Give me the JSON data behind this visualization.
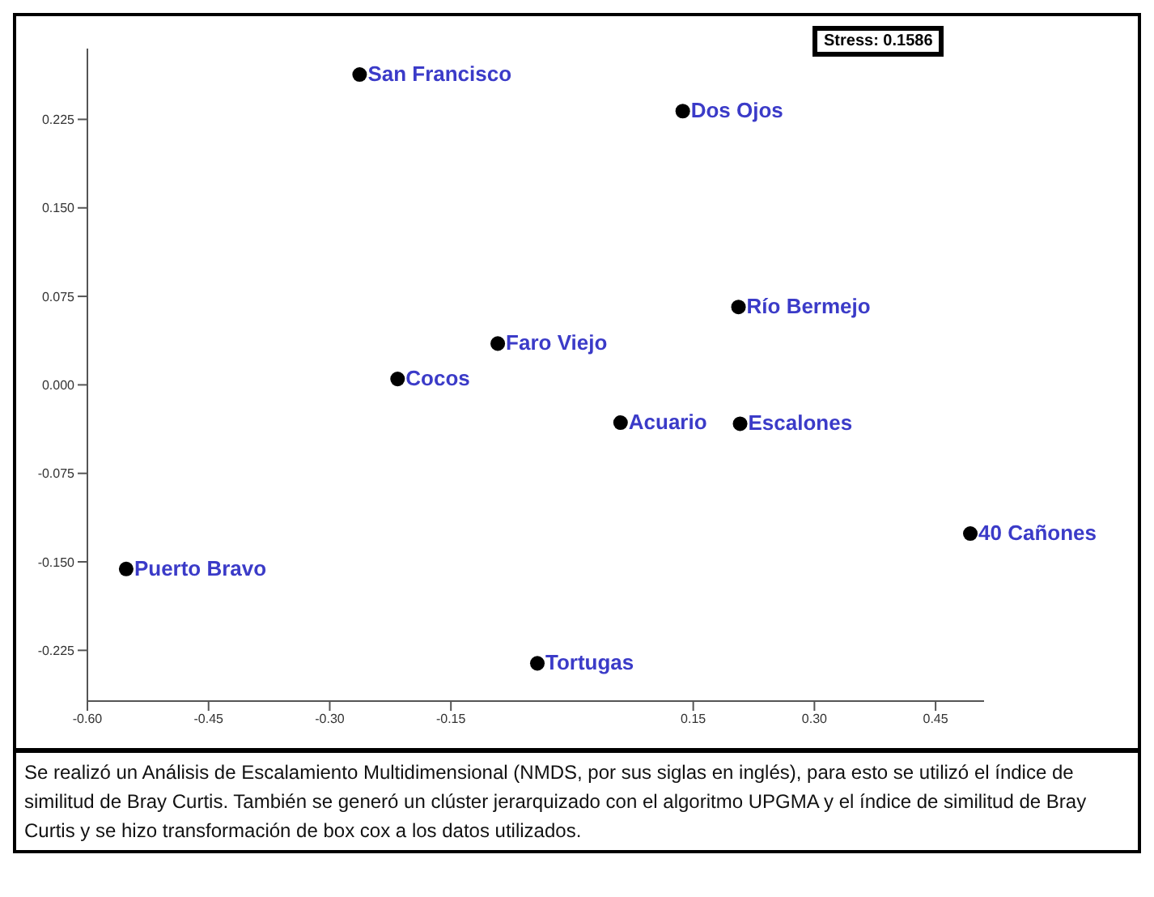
{
  "chart_data": {
    "type": "scatter",
    "x": [
      -0.263,
      0.137,
      0.206,
      -0.092,
      -0.216,
      0.06,
      0.208,
      0.493,
      -0.552,
      -0.043
    ],
    "series": [
      {
        "color": "#000000",
        "values": [
          0.263,
          0.232,
          0.066,
          0.035,
          0.005,
          -0.032,
          -0.033,
          -0.126,
          -0.156,
          -0.236
        ]
      }
    ],
    "marker": "circle",
    "xlim": [
      -0.6,
      0.51
    ],
    "xticks": [
      {
        "value": -0.6,
        "label": "-0.60"
      },
      {
        "value": -0.45,
        "label": "-0.45"
      },
      {
        "value": -0.3,
        "label": "-0.30"
      },
      {
        "value": -0.15,
        "label": "-0.15"
      },
      {
        "value": 0.15,
        "label": "0.15"
      },
      {
        "value": 0.3,
        "label": "0.30"
      },
      {
        "value": 0.45,
        "label": "0.45"
      }
    ],
    "ylim": [
      -0.268,
      0.285
    ],
    "yticks": [
      {
        "value": -0.225,
        "label": "-0.225"
      },
      {
        "value": -0.15,
        "label": "-0.150"
      },
      {
        "value": -0.075,
        "label": "-0.075"
      },
      {
        "value": 0,
        "label": "0.000"
      },
      {
        "value": 0.075,
        "label": "0.075"
      },
      {
        "value": 0.15,
        "label": "0.150"
      },
      {
        "value": 0.225,
        "label": "0.225"
      }
    ],
    "annotations": [
      {
        "text": "San Francisco",
        "x": -0.263,
        "y": 0.263
      },
      {
        "text": "Dos Ojos",
        "x": 0.137,
        "y": 0.232
      },
      {
        "text": "Río Bermejo",
        "x": 0.206,
        "y": 0.066
      },
      {
        "text": "Faro Viejo",
        "x": -0.092,
        "y": 0.035
      },
      {
        "text": "Cocos",
        "x": -0.216,
        "y": 0.005
      },
      {
        "text": "Acuario",
        "x": 0.06,
        "y": -0.032
      },
      {
        "text": "Escalones",
        "x": 0.208,
        "y": -0.033
      },
      {
        "text": "40 Cañones",
        "x": 0.493,
        "y": -0.126
      },
      {
        "text": "Puerto Bravo",
        "x": -0.552,
        "y": -0.156
      },
      {
        "text": "Tortugas",
        "x": -0.043,
        "y": -0.236
      },
      "Stress: 0.1586",
      "Se realizó un Análisis de Escalamiento Multidimensional (NMDS, por sus siglas en inglés), para esto se utilizó el índice de similitud de Bray Curtis. También se generó un clúster jerarquizado con el algoritmo UPGMA y el índice de similitud de Bray Curtis y se hizo transformación de box cox a los datos utilizados."
    ]
  }
}
